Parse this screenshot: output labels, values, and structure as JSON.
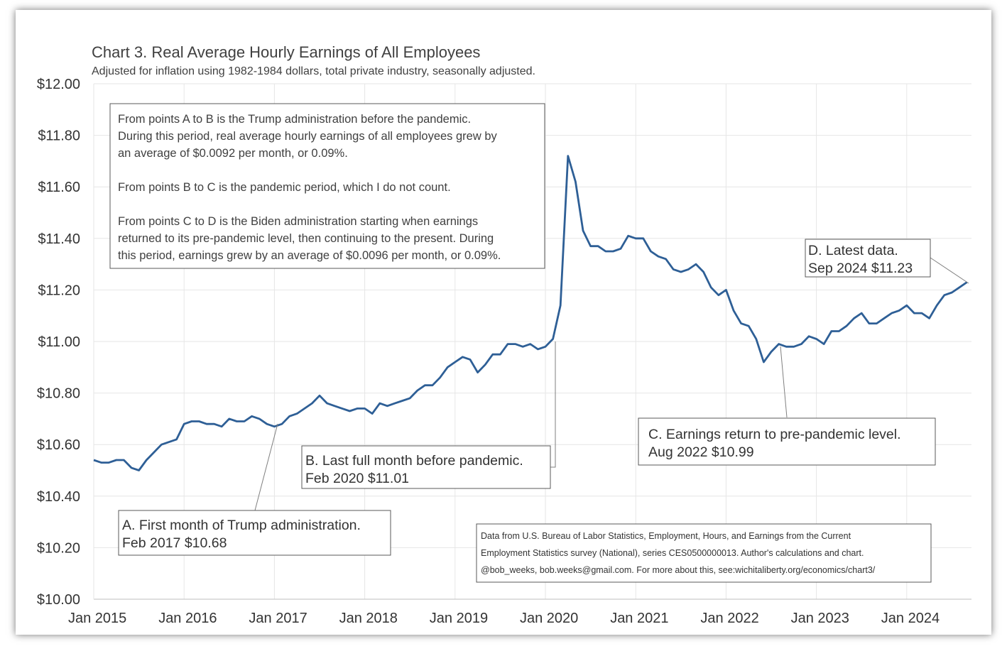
{
  "chart_data": {
    "type": "line",
    "title": "Chart 3. Real Average Hourly Earnings of All Employees",
    "subtitle": "Adjusted for inflation using 1982-1984 dollars, total private industry, seasonally adjusted.",
    "xlabel": "",
    "ylabel": "",
    "ylim": [
      10.0,
      12.0
    ],
    "y_ticks": [
      "$12.00",
      "$11.80",
      "$11.60",
      "$11.40",
      "$11.20",
      "$11.00",
      "$10.80",
      "$10.60",
      "$10.40",
      "$10.20",
      "$10.00"
    ],
    "x_ticks": [
      "Jan 2015",
      "Jan 2016",
      "Jan 2017",
      "Jan 2018",
      "Jan 2019",
      "Jan 2020",
      "Jan 2021",
      "Jan 2022",
      "Jan 2023",
      "Jan 2024"
    ],
    "start": "Jan 2015",
    "end": "Sep 2024",
    "series": [
      {
        "name": "Real average hourly earnings (1982-1984 dollars)",
        "color": "#2e5f96",
        "values": [
          10.54,
          10.53,
          10.53,
          10.54,
          10.54,
          10.51,
          10.5,
          10.54,
          10.57,
          10.6,
          10.61,
          10.62,
          10.68,
          10.69,
          10.69,
          10.68,
          10.68,
          10.67,
          10.7,
          10.69,
          10.69,
          10.71,
          10.7,
          10.68,
          10.67,
          10.68,
          10.71,
          10.72,
          10.74,
          10.76,
          10.79,
          10.76,
          10.75,
          10.74,
          10.73,
          10.74,
          10.74,
          10.72,
          10.76,
          10.75,
          10.76,
          10.77,
          10.78,
          10.81,
          10.83,
          10.83,
          10.86,
          10.9,
          10.92,
          10.94,
          10.93,
          10.88,
          10.91,
          10.95,
          10.95,
          10.99,
          10.99,
          10.98,
          10.99,
          10.97,
          10.98,
          11.01,
          11.14,
          11.72,
          11.62,
          11.43,
          11.37,
          11.37,
          11.35,
          11.35,
          11.36,
          11.41,
          11.4,
          11.4,
          11.35,
          11.33,
          11.32,
          11.28,
          11.27,
          11.28,
          11.3,
          11.27,
          11.21,
          11.18,
          11.2,
          11.12,
          11.07,
          11.06,
          11.01,
          10.92,
          10.96,
          10.99,
          10.98,
          10.98,
          10.99,
          11.02,
          11.01,
          10.99,
          11.04,
          11.04,
          11.06,
          11.09,
          11.11,
          11.07,
          11.07,
          11.09,
          11.11,
          11.12,
          11.14,
          11.11,
          11.11,
          11.09,
          11.14,
          11.18,
          11.19,
          11.21,
          11.23
        ]
      }
    ],
    "annotations": [
      {
        "id": "A",
        "line1": "A. First month  of Trump  administration.",
        "line2": "Feb 2017  $10.68"
      },
      {
        "id": "B",
        "line1": "B. Last full  month  before pandemic.",
        "line2": "Feb 2020  $11.01"
      },
      {
        "id": "C",
        "line1": "C. Earnings  return to pre-pandemic  level.",
        "line2": "Aug  2022  $10.99"
      },
      {
        "id": "D",
        "line1": "D. Latest data.",
        "line2": "Sep 2024  $11.23"
      }
    ],
    "note_lines": [
      "From points A to B is the Trump administration before the pandemic.",
      "During this period, real average hourly earnings of all employees grew by",
      "an average of $0.0092 per month, or 0.09%.",
      "From points B to C is the pandemic period, which I do not count.",
      "From points C to D is the Biden administration starting when earnings",
      "returned to its pre-pandemic level, then continuing to the present. During",
      "this period, earnings grew by an average of $0.0096 per month, or 0.09%."
    ],
    "source_lines": [
      "Data from U.S. Bureau of Labor Statistics, Employment, Hours, and Earnings from the Current",
      "Employment Statistics survey (National), series CES0500000013. Author's calculations and chart.",
      "@bob_weeks, bob.weeks@gmail.com. For more about this, see:wichitaliberty.org/economics/chart3/"
    ]
  }
}
